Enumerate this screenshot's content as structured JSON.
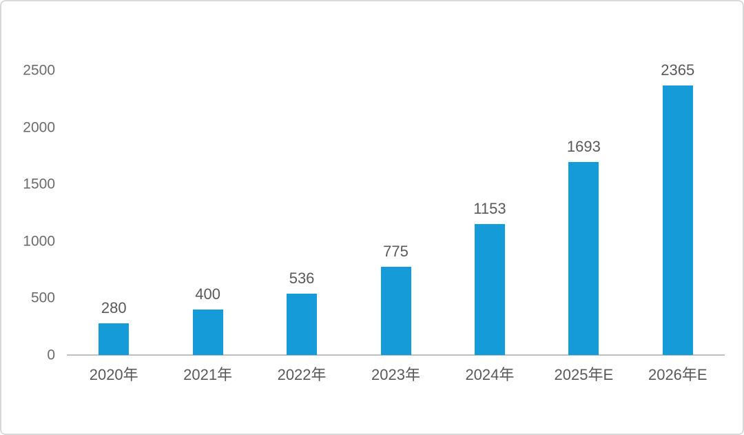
{
  "chart_data": {
    "type": "bar",
    "title": "",
    "xlabel": "",
    "ylabel": "",
    "categories": [
      "2020年",
      "2021年",
      "2022年",
      "2023年",
      "2024年",
      "2025年E",
      "2026年E"
    ],
    "values": [
      280,
      400,
      536,
      775,
      1153,
      1693,
      2365
    ],
    "data_labels": [
      "280",
      "400",
      "536",
      "775",
      "1153",
      "1693",
      "2365"
    ],
    "yticks": [
      0,
      500,
      1000,
      1500,
      2000,
      2500
    ],
    "ytick_labels": [
      "0",
      "500",
      "1000",
      "1500",
      "2000",
      "2500"
    ],
    "ylim": [
      0,
      2500
    ],
    "grid": false,
    "legend_position": "none",
    "bar_color": "#149bd8",
    "data_label_color": "#595959",
    "tick_label_color": "#6b6b6b",
    "axis_line_color": "#bfbfbf",
    "frame_border_color": "#d9d9d9",
    "background_color": "#ffffff"
  }
}
